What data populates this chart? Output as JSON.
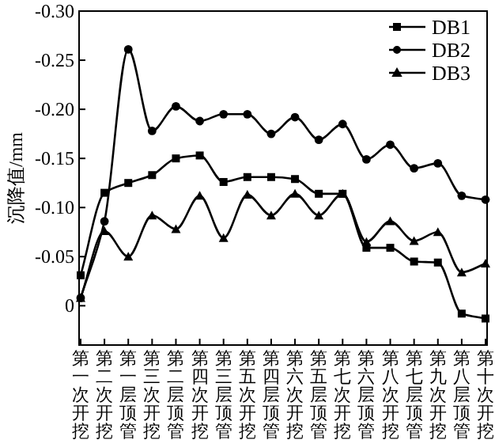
{
  "chart_data": {
    "type": "line",
    "ylabel": "沉降值/mm",
    "categories": [
      "第一次开挖",
      "第二次开挖",
      "第一层顶管",
      "第三次开挖",
      "第二层顶管",
      "第四次开挖",
      "第三层顶管",
      "第五次开挖",
      "第四层顶管",
      "第六次开挖",
      "第五层顶管",
      "第七次开挖",
      "第六层顶管",
      "第八次开挖",
      "第七层顶管",
      "第九次开挖",
      "第八层顶管",
      "第十次开挖"
    ],
    "series": [
      {
        "name": "DB1",
        "color": "#000000",
        "marker": "square",
        "values": [
          -0.031,
          -0.115,
          -0.125,
          -0.133,
          -0.15,
          -0.153,
          -0.126,
          -0.131,
          -0.131,
          -0.129,
          -0.114,
          -0.114,
          -0.059,
          -0.059,
          -0.045,
          -0.044,
          0.008,
          0.013
        ]
      },
      {
        "name": "DB2",
        "color": "#000000",
        "marker": "circle",
        "values": [
          -0.008,
          -0.086,
          -0.261,
          -0.178,
          -0.203,
          -0.188,
          -0.195,
          -0.195,
          -0.175,
          -0.192,
          -0.169,
          -0.185,
          -0.149,
          -0.164,
          -0.14,
          -0.145,
          -0.112,
          -0.108
        ]
      },
      {
        "name": "DB3",
        "color": "#000000",
        "marker": "triangle",
        "values": [
          -0.008,
          -0.076,
          -0.05,
          -0.092,
          -0.078,
          -0.112,
          -0.069,
          -0.113,
          -0.092,
          -0.114,
          -0.092,
          -0.114,
          -0.065,
          -0.086,
          -0.066,
          -0.075,
          -0.034,
          -0.043
        ]
      }
    ],
    "ylim": [
      0.04,
      -0.3
    ],
    "yticks": [
      {
        "value": -0.3,
        "label": "-0.30"
      },
      {
        "value": -0.25,
        "label": "-0.25"
      },
      {
        "value": -0.2,
        "label": "-0.20"
      },
      {
        "value": -0.15,
        "label": "-0.15"
      },
      {
        "value": -0.1,
        "label": "-0.10"
      },
      {
        "value": -0.05,
        "label": "-0.05"
      },
      0
    ],
    "legend": "top right",
    "grid": false,
    "line_style": "solid"
  }
}
